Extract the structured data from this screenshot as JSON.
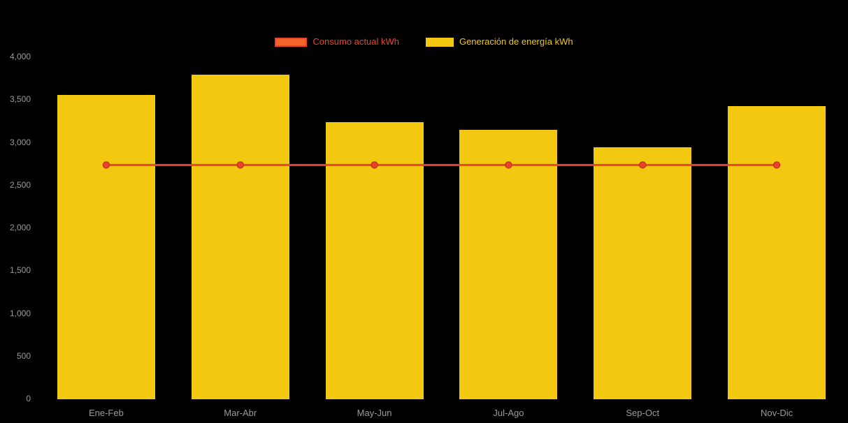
{
  "chart_data": {
    "type": "bar",
    "title": "",
    "xlabel": "",
    "ylabel": "",
    "categories": [
      "Ene-Feb",
      "Mar-Abr",
      "May-Jun",
      "Jul-Ago",
      "Sep-Oct",
      "Nov-Dic"
    ],
    "series": [
      {
        "name": "Consumo actual kWh",
        "type": "line",
        "color": "#E8432D",
        "marker_stroke": "#C7351F",
        "values": [
          2740,
          2740,
          2740,
          2740,
          2740,
          2740
        ]
      },
      {
        "name": "Generación de energía kWh",
        "type": "bar",
        "color": "#F2C811",
        "values": [
          3560,
          3800,
          3240,
          3150,
          2950,
          3430
        ]
      }
    ],
    "ylim": [
      0,
      4000
    ],
    "y_ticks": [
      0,
      500,
      1000,
      1500,
      2000,
      2500,
      3000,
      3500,
      4000
    ],
    "y_tick_labels": [
      "0",
      "500",
      "1,000",
      "1,500",
      "2,000",
      "2,500",
      "3,000",
      "3,500",
      "4,000"
    ],
    "grid": false,
    "legend_position": "top",
    "background": "#000000",
    "axis_label_color": "#9B9B9B"
  }
}
